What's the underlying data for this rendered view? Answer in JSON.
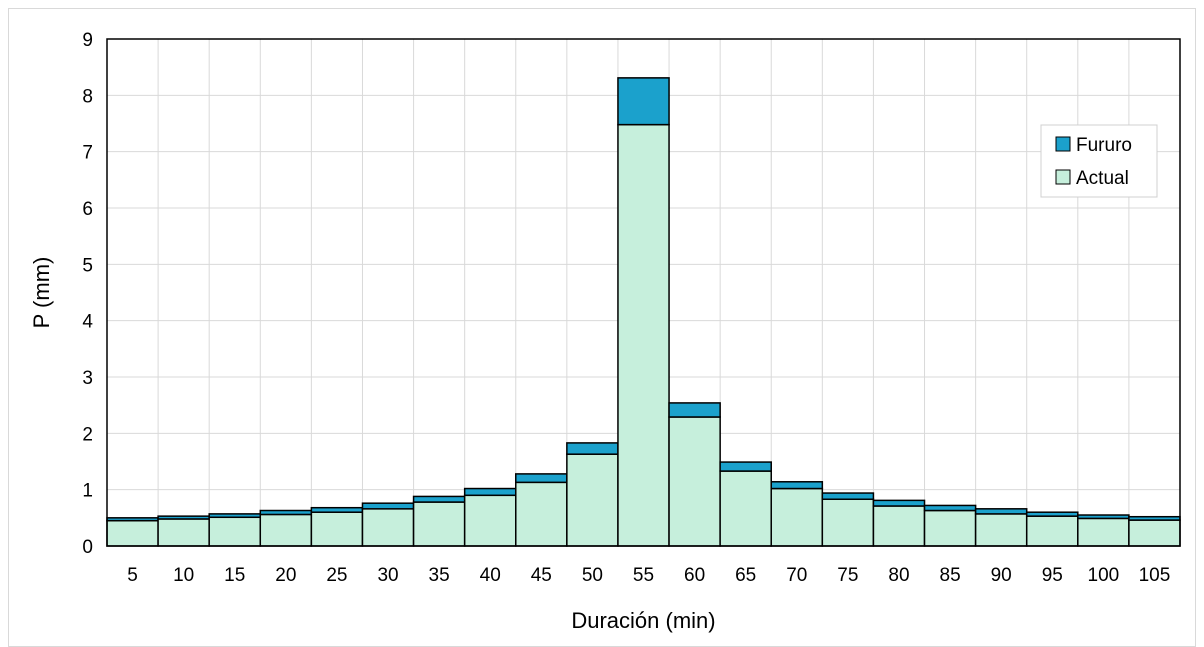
{
  "chart_data": {
    "type": "bar",
    "stacked": true,
    "categories": [
      "5",
      "10",
      "15",
      "20",
      "25",
      "30",
      "35",
      "40",
      "45",
      "50",
      "55",
      "60",
      "65",
      "70",
      "75",
      "80",
      "85",
      "90",
      "95",
      "100",
      "105"
    ],
    "series": [
      {
        "name": "Actual",
        "color": "#c6efdc",
        "values": [
          0.45,
          0.48,
          0.51,
          0.56,
          0.6,
          0.66,
          0.78,
          0.9,
          1.13,
          1.63,
          7.48,
          2.29,
          1.33,
          1.02,
          0.83,
          0.71,
          0.63,
          0.57,
          0.53,
          0.49,
          0.46
        ]
      },
      {
        "name": "Fururo",
        "color": "#1ba1cc",
        "values": [
          0.05,
          0.05,
          0.06,
          0.07,
          0.08,
          0.1,
          0.1,
          0.12,
          0.15,
          0.2,
          0.83,
          0.25,
          0.16,
          0.12,
          0.11,
          0.1,
          0.09,
          0.09,
          0.07,
          0.06,
          0.06
        ]
      }
    ],
    "title": "",
    "xlabel": "Duración (min)",
    "ylabel": "P (mm)",
    "ylim": [
      0,
      9
    ],
    "yticks": [
      "0",
      "1",
      "2",
      "3",
      "4",
      "5",
      "6",
      "7",
      "8",
      "9"
    ],
    "grid": true,
    "legend_position": "top-right",
    "legend_entries": [
      "Fururo",
      "Actual"
    ]
  }
}
